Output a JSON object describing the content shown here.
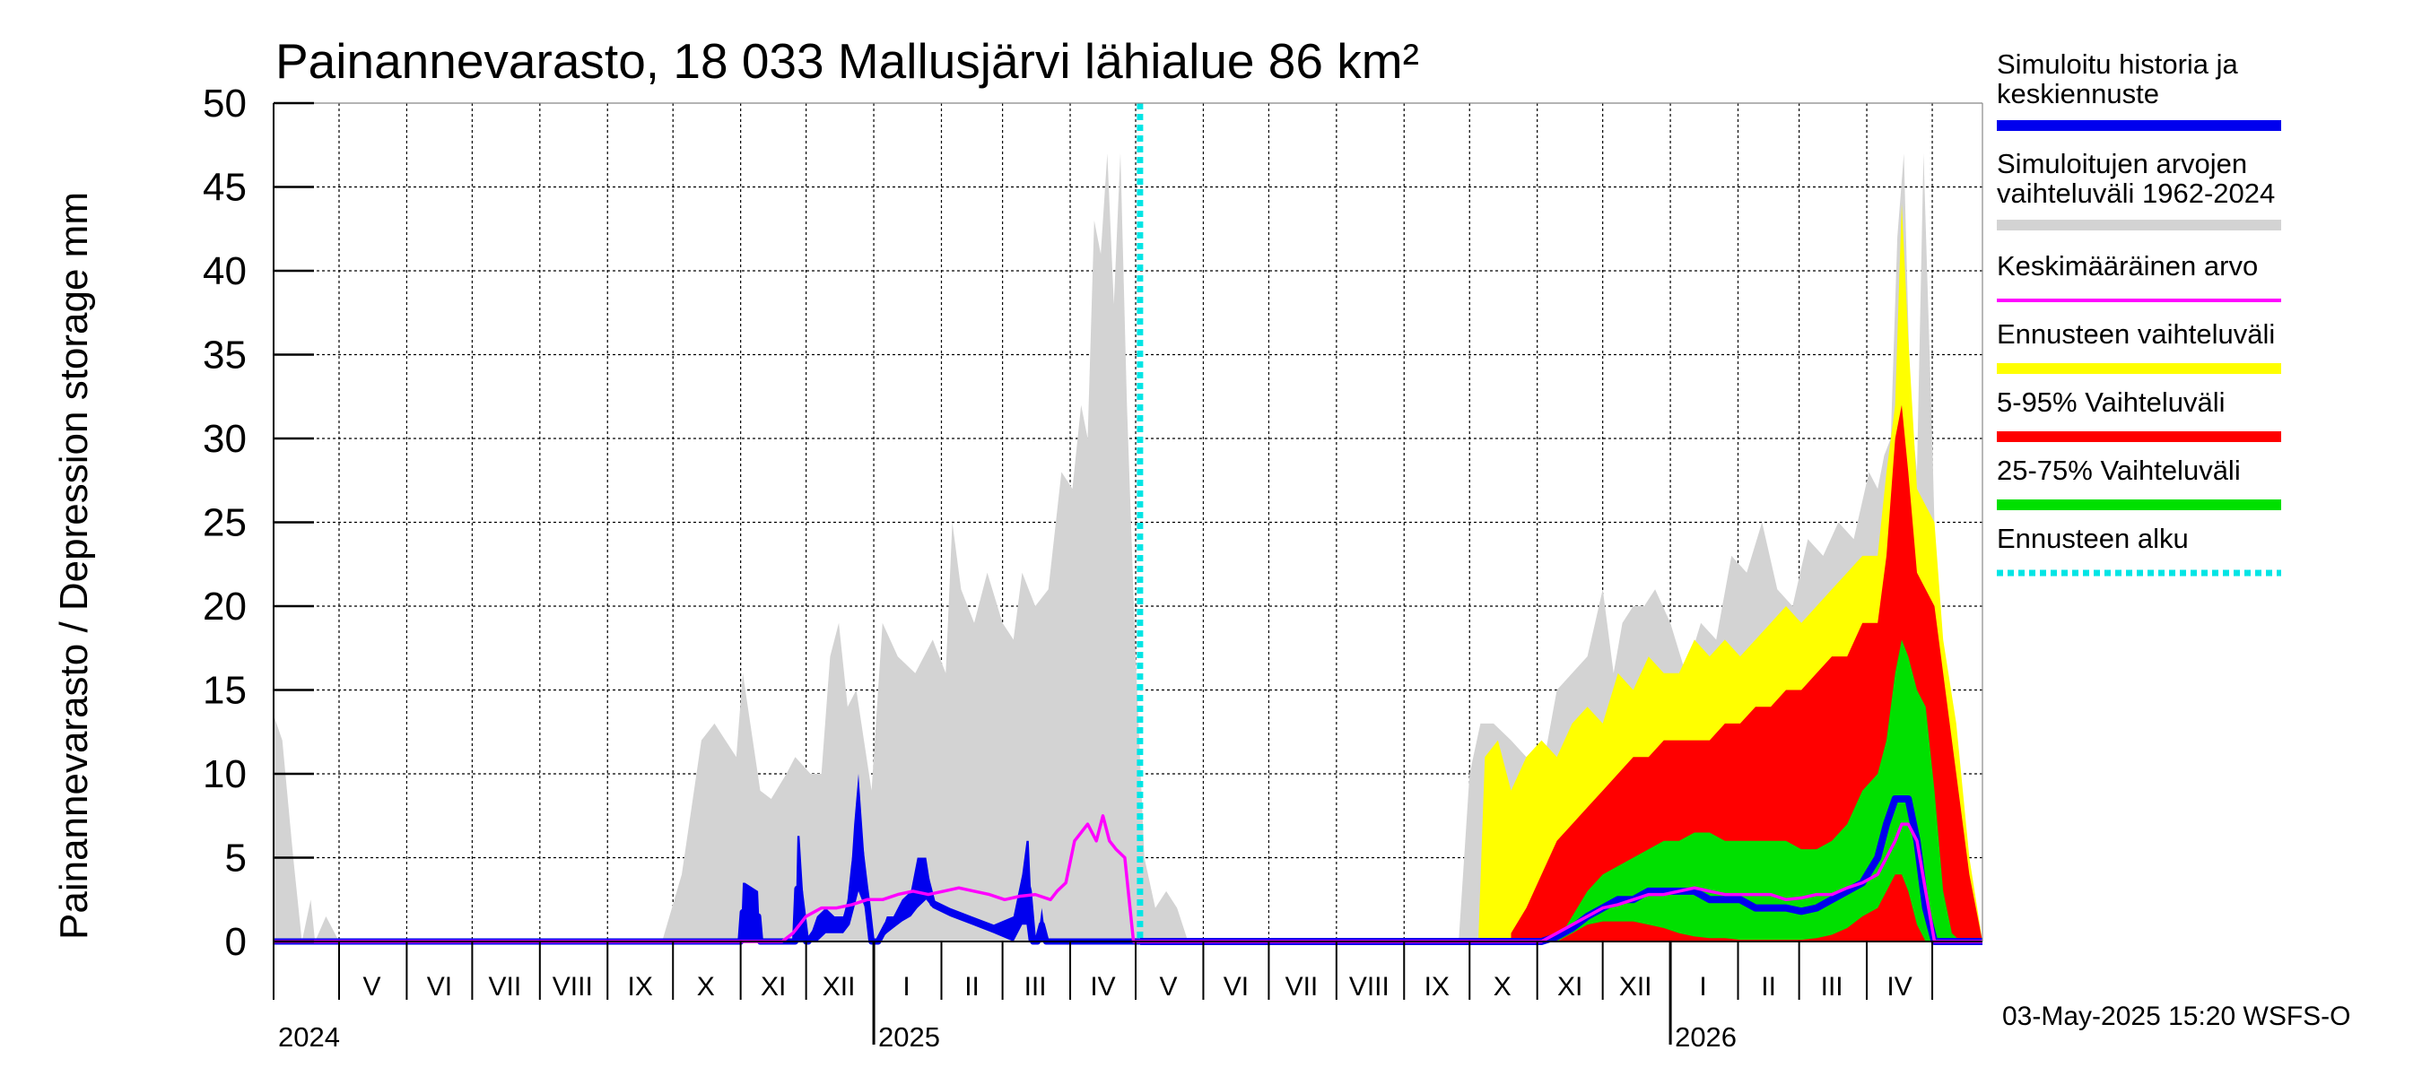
{
  "chart_data": {
    "type": "area",
    "title": "Painannevarasto, 18 033 Mallusjärvi lähialue 86 km²",
    "ylabel": "Painannevarasto / Depression storage    mm",
    "ylim": [
      0,
      50
    ],
    "yticks": [
      0,
      5,
      10,
      15,
      20,
      25,
      30,
      35,
      40,
      45,
      50
    ],
    "xlim": [
      "2024-04-01",
      "2026-05-24"
    ],
    "grid": true,
    "month_labels": [
      {
        "label": "V",
        "date": "2024-05-16"
      },
      {
        "label": "VI",
        "date": "2024-06-16"
      },
      {
        "label": "VII",
        "date": "2024-07-16"
      },
      {
        "label": "VIII",
        "date": "2024-08-16"
      },
      {
        "label": "IX",
        "date": "2024-09-16"
      },
      {
        "label": "X",
        "date": "2024-10-16"
      },
      {
        "label": "XI",
        "date": "2024-11-16"
      },
      {
        "label": "XII",
        "date": "2024-12-16"
      },
      {
        "label": "I",
        "date": "2025-01-16"
      },
      {
        "label": "II",
        "date": "2025-02-15"
      },
      {
        "label": "III",
        "date": "2025-03-16"
      },
      {
        "label": "IV",
        "date": "2025-04-16"
      },
      {
        "label": "V",
        "date": "2025-05-16"
      },
      {
        "label": "VI",
        "date": "2025-06-16"
      },
      {
        "label": "VII",
        "date": "2025-07-16"
      },
      {
        "label": "VIII",
        "date": "2025-08-16"
      },
      {
        "label": "IX",
        "date": "2025-09-16"
      },
      {
        "label": "X",
        "date": "2025-10-16"
      },
      {
        "label": "XI",
        "date": "2025-11-16"
      },
      {
        "label": "XII",
        "date": "2025-12-16"
      },
      {
        "label": "I",
        "date": "2026-01-16"
      },
      {
        "label": "II",
        "date": "2026-02-15"
      },
      {
        "label": "III",
        "date": "2026-03-16"
      },
      {
        "label": "IV",
        "date": "2026-04-16"
      }
    ],
    "year_labels": [
      {
        "label": "2024",
        "date": "2024-04-01"
      },
      {
        "label": "2025",
        "date": "2025-01-01"
      },
      {
        "label": "2026",
        "date": "2026-01-01"
      }
    ],
    "forecast_start": "2025-05-03",
    "series": [
      {
        "name": "Simuloitujen arvojen vaihteluväli 1962-2024",
        "color": "#d3d3d3",
        "kind": "band",
        "dates": [
          "2024-04-01",
          "2024-04-05",
          "2024-04-10",
          "2024-04-14",
          "2024-04-18",
          "2024-04-20",
          "2024-04-25",
          "2024-05-01",
          "2024-09-26",
          "2024-10-05",
          "2024-10-14",
          "2024-10-20",
          "2024-10-30",
          "2024-11-02",
          "2024-11-10",
          "2024-11-15",
          "2024-11-22",
          "2024-11-26",
          "2024-12-03",
          "2024-12-08",
          "2024-12-12",
          "2024-12-16",
          "2024-12-20",
          "2024-12-24",
          "2024-12-31",
          "2025-01-05",
          "2025-01-12",
          "2025-01-20",
          "2025-01-28",
          "2025-02-03",
          "2025-02-06",
          "2025-02-10",
          "2025-02-16",
          "2025-02-22",
          "2025-03-01",
          "2025-03-06",
          "2025-03-10",
          "2025-03-16",
          "2025-03-22",
          "2025-03-28",
          "2025-04-02",
          "2025-04-06",
          "2025-04-09",
          "2025-04-12",
          "2025-04-15",
          "2025-04-18",
          "2025-04-21",
          "2025-04-24",
          "2025-04-27",
          "2025-05-01",
          "2025-05-05",
          "2025-05-10",
          "2025-05-15",
          "2025-05-20",
          "2025-05-25",
          "2025-06-01",
          "2025-09-26",
          "2025-10-01",
          "2025-10-06",
          "2025-10-12",
          "2025-10-20",
          "2025-10-27",
          "2025-11-03",
          "2025-11-10",
          "2025-11-17",
          "2025-11-24",
          "2025-12-01",
          "2025-12-06",
          "2025-12-10",
          "2025-12-15",
          "2025-12-20",
          "2025-12-25",
          "2026-01-01",
          "2026-01-08",
          "2026-01-15",
          "2026-01-22",
          "2026-01-29",
          "2026-02-05",
          "2026-02-12",
          "2026-02-19",
          "2026-02-26",
          "2026-03-05",
          "2026-03-12",
          "2026-03-19",
          "2026-03-26",
          "2026-04-02",
          "2026-04-06",
          "2026-04-09",
          "2026-04-12",
          "2026-04-15",
          "2026-04-18",
          "2026-04-21",
          "2026-04-24",
          "2026-04-27",
          "2026-05-01",
          "2026-05-05",
          "2026-05-10",
          "2026-05-15",
          "2026-05-20",
          "2026-05-24"
        ],
        "upper": [
          13.5,
          12,
          5,
          0,
          2.5,
          0,
          1.5,
          0,
          0,
          4,
          12,
          13,
          11,
          16,
          9,
          8.5,
          10,
          11,
          10,
          10,
          17,
          19,
          14,
          15,
          9,
          19,
          17,
          16,
          18,
          16,
          25,
          21,
          19,
          22,
          19,
          18,
          22,
          20,
          21,
          28,
          27,
          32,
          30,
          43,
          41,
          47,
          38,
          47,
          32,
          17,
          5,
          2,
          3,
          2,
          0,
          0,
          0,
          10,
          13,
          13,
          12,
          11,
          10,
          15,
          16,
          17,
          21,
          16,
          19,
          20,
          20,
          21,
          19,
          16,
          19,
          18,
          23,
          22,
          25,
          21,
          20,
          24,
          23,
          25,
          24,
          28,
          27,
          29,
          30,
          42,
          47,
          32,
          28,
          47,
          30,
          10,
          4,
          0,
          0,
          0
        ]
      },
      {
        "name": "Ennusteen vaihteluväli",
        "color": "#ffff00",
        "kind": "band",
        "dates": [
          "2025-10-05",
          "2025-10-08",
          "2025-10-14",
          "2025-10-20",
          "2025-10-27",
          "2025-11-03",
          "2025-11-10",
          "2025-11-17",
          "2025-11-24",
          "2025-12-01",
          "2025-12-08",
          "2025-12-15",
          "2025-12-22",
          "2025-12-29",
          "2026-01-05",
          "2026-01-12",
          "2026-01-19",
          "2026-01-26",
          "2026-02-02",
          "2026-02-09",
          "2026-02-16",
          "2026-02-23",
          "2026-03-02",
          "2026-03-09",
          "2026-03-16",
          "2026-03-23",
          "2026-03-30",
          "2026-04-06",
          "2026-04-10",
          "2026-04-14",
          "2026-04-17",
          "2026-04-20",
          "2026-04-24",
          "2026-04-28",
          "2026-05-02",
          "2026-05-06",
          "2026-05-12",
          "2026-05-18",
          "2026-05-24"
        ],
        "upper": [
          0,
          11,
          12,
          9,
          11,
          12,
          11,
          13,
          14,
          13,
          16,
          15,
          17,
          16,
          16,
          18,
          17,
          18,
          17,
          18,
          19,
          20,
          19,
          20,
          21,
          22,
          23,
          23,
          28,
          32,
          44,
          36,
          27,
          26,
          25,
          18,
          13,
          5,
          0
        ]
      },
      {
        "name": "5-95% Vaihteluväli",
        "color": "#ff0000",
        "kind": "band",
        "dates": [
          "2025-10-20",
          "2025-10-27",
          "2025-11-03",
          "2025-11-10",
          "2025-11-17",
          "2025-11-24",
          "2025-12-01",
          "2025-12-08",
          "2025-12-15",
          "2025-12-22",
          "2025-12-29",
          "2026-01-05",
          "2026-01-12",
          "2026-01-19",
          "2026-01-26",
          "2026-02-02",
          "2026-02-09",
          "2026-02-16",
          "2026-02-23",
          "2026-03-02",
          "2026-03-09",
          "2026-03-16",
          "2026-03-23",
          "2026-03-30",
          "2026-04-06",
          "2026-04-10",
          "2026-04-14",
          "2026-04-17",
          "2026-04-20",
          "2026-04-24",
          "2026-04-28",
          "2026-05-02",
          "2026-05-06",
          "2026-05-12",
          "2026-05-18",
          "2026-05-24"
        ],
        "upper": [
          0.5,
          2,
          4,
          6,
          7,
          8,
          9,
          10,
          11,
          11,
          12,
          12,
          12,
          12,
          13,
          13,
          14,
          14,
          15,
          15,
          16,
          17,
          17,
          19,
          19,
          23,
          30,
          32,
          28,
          22,
          21,
          20,
          16,
          10,
          4,
          0
        ]
      },
      {
        "name": "25-75% Vaihteluväli",
        "color": "#00e000",
        "kind": "band",
        "dates": [
          "2025-11-10",
          "2025-11-17",
          "2025-11-24",
          "2025-12-01",
          "2025-12-08",
          "2025-12-15",
          "2025-12-22",
          "2025-12-29",
          "2026-01-05",
          "2026-01-12",
          "2026-01-19",
          "2026-01-26",
          "2026-02-02",
          "2026-02-09",
          "2026-02-16",
          "2026-02-23",
          "2026-03-02",
          "2026-03-09",
          "2026-03-16",
          "2026-03-23",
          "2026-03-30",
          "2026-04-06",
          "2026-04-10",
          "2026-04-14",
          "2026-04-17",
          "2026-04-20",
          "2026-04-24",
          "2026-04-28",
          "2026-05-02",
          "2026-05-06",
          "2026-05-10",
          "2026-05-14"
        ],
        "upper": [
          0,
          1.5,
          3,
          4,
          4.5,
          5,
          5.5,
          6,
          6,
          6.5,
          6.5,
          6,
          6,
          6,
          6,
          6,
          5.5,
          5.5,
          6,
          7,
          9,
          10,
          12,
          16,
          18,
          17,
          15,
          14,
          9,
          3,
          0.5,
          0
        ],
        "lower": [
          0,
          0.5,
          1,
          1.2,
          1.2,
          1.2,
          1.0,
          0.8,
          0.5,
          0.3,
          0.2,
          0.2,
          0.1,
          0.1,
          0.1,
          0.1,
          0.1,
          0.2,
          0.4,
          0.8,
          1.5,
          2,
          3,
          4,
          4,
          3,
          1,
          0,
          0,
          0,
          0,
          0
        ]
      },
      {
        "name": "Simuloitu historia ja keskiennuste",
        "color": "#0000ee",
        "kind": "band_line",
        "dates": [
          "2024-04-01",
          "2024-11-01",
          "2024-11-02",
          "2024-11-03",
          "2024-11-09",
          "2024-11-10",
          "2024-11-26",
          "2024-11-27",
          "2024-11-28",
          "2024-12-01",
          "2024-12-02",
          "2024-12-06",
          "2024-12-10",
          "2024-12-14",
          "2024-12-18",
          "2024-12-21",
          "2024-12-23",
          "2024-12-25",
          "2024-12-28",
          "2024-12-29",
          "2024-12-31",
          "2025-01-03",
          "2025-01-07",
          "2025-01-10",
          "2025-01-14",
          "2025-01-18",
          "2025-01-21",
          "2025-01-25",
          "2025-01-28",
          "2025-02-05",
          "2025-02-15",
          "2025-02-25",
          "2025-03-06",
          "2025-03-10",
          "2025-03-12",
          "2025-03-13",
          "2025-03-15",
          "2025-03-17",
          "2025-03-19",
          "2025-03-21",
          "2025-05-03"
        ],
        "upper": [
          0,
          0,
          3.5,
          3.5,
          3,
          0,
          0,
          6.3,
          6.3,
          0,
          0,
          1.5,
          2,
          1.5,
          1.5,
          3,
          7,
          10,
          4.5,
          3.5,
          0,
          0,
          1.5,
          1.5,
          2.5,
          3,
          5,
          5,
          2.5,
          2,
          1.5,
          1,
          1.5,
          4,
          6,
          6,
          0,
          0,
          2,
          0,
          0
        ],
        "lower": [
          0,
          0,
          0,
          0,
          0,
          0,
          0,
          0,
          0,
          0,
          0,
          0,
          0.5,
          0.5,
          0.5,
          1,
          2,
          3,
          2,
          1,
          0,
          0,
          0.5,
          0.8,
          1.2,
          1.5,
          2,
          2.5,
          2,
          1.5,
          1,
          0.5,
          0,
          1,
          1,
          0,
          0,
          0,
          0,
          0,
          0
        ]
      },
      {
        "name": "Simuloitu historia ja keskiennuste",
        "color": "#0000ee",
        "kind": "line",
        "dates": [
          "2025-05-03",
          "2025-11-03",
          "2025-11-10",
          "2025-11-17",
          "2025-11-24",
          "2025-12-01",
          "2025-12-08",
          "2025-12-15",
          "2025-12-22",
          "2025-12-29",
          "2026-01-05",
          "2026-01-12",
          "2026-01-19",
          "2026-01-26",
          "2026-02-02",
          "2026-02-09",
          "2026-02-16",
          "2026-02-23",
          "2026-03-02",
          "2026-03-09",
          "2026-03-16",
          "2026-03-23",
          "2026-03-30",
          "2026-04-06",
          "2026-04-10",
          "2026-04-14",
          "2026-04-17",
          "2026-04-20",
          "2026-04-24",
          "2026-04-28",
          "2026-05-02",
          "2026-05-24"
        ],
        "values": [
          0,
          0,
          0.3,
          0.8,
          1.5,
          2,
          2.5,
          2.5,
          3,
          3,
          3,
          3,
          2.5,
          2.5,
          2.5,
          2,
          2,
          2,
          1.8,
          2,
          2.5,
          3,
          3.5,
          5,
          7,
          8.5,
          8.5,
          8.5,
          6,
          2,
          0,
          0
        ]
      },
      {
        "name": "Keskimääräinen arvo",
        "color": "#ff00ff",
        "kind": "line",
        "dates": [
          "2024-04-01",
          "2024-11-20",
          "2024-11-25",
          "2024-12-01",
          "2024-12-08",
          "2024-12-15",
          "2024-12-22",
          "2024-12-29",
          "2025-01-05",
          "2025-01-12",
          "2025-01-19",
          "2025-01-26",
          "2025-02-02",
          "2025-02-09",
          "2025-02-16",
          "2025-02-23",
          "2025-03-02",
          "2025-03-09",
          "2025-03-16",
          "2025-03-23",
          "2025-03-26",
          "2025-03-30",
          "2025-04-03",
          "2025-04-06",
          "2025-04-09",
          "2025-04-13",
          "2025-04-16",
          "2025-04-19",
          "2025-04-22",
          "2025-04-26",
          "2025-04-30",
          "2025-05-20",
          "2025-11-03",
          "2025-11-10",
          "2025-11-17",
          "2025-11-24",
          "2025-12-01",
          "2025-12-08",
          "2025-12-15",
          "2025-12-22",
          "2025-12-29",
          "2026-01-05",
          "2026-01-12",
          "2026-01-19",
          "2026-01-26",
          "2026-02-02",
          "2026-02-09",
          "2026-02-16",
          "2026-02-23",
          "2026-03-02",
          "2026-03-09",
          "2026-03-16",
          "2026-03-23",
          "2026-03-30",
          "2026-04-06",
          "2026-04-10",
          "2026-04-14",
          "2026-04-17",
          "2026-04-20",
          "2026-04-24",
          "2026-04-28",
          "2026-05-02",
          "2026-05-24"
        ],
        "values": [
          0,
          0,
          0.5,
          1.5,
          2,
          2,
          2.2,
          2.5,
          2.5,
          2.8,
          3,
          2.8,
          3,
          3.2,
          3,
          2.8,
          2.5,
          2.7,
          2.8,
          2.5,
          3,
          3.5,
          6,
          6.5,
          7,
          6,
          7.5,
          6,
          5.5,
          5,
          0,
          0,
          0,
          0.5,
          1,
          1.5,
          2,
          2.2,
          2.5,
          2.8,
          2.8,
          3,
          3.2,
          3,
          2.8,
          2.8,
          2.8,
          2.8,
          2.5,
          2.6,
          2.8,
          2.8,
          3.2,
          3.5,
          4,
          5,
          6,
          7,
          7,
          6,
          3,
          0,
          0
        ]
      }
    ]
  },
  "legend": {
    "items": [
      {
        "label_line1": "Simuloitu historia ja",
        "label_line2": "keskiennuste",
        "color": "#0000ee",
        "style": "solid"
      },
      {
        "label_line1": "Simuloitujen arvojen",
        "label_line2": "vaihteluväli 1962-2024",
        "color": "#d3d3d3",
        "style": "solid"
      },
      {
        "label_line1": "Keskimääräinen arvo",
        "label_line2": "",
        "color": "#ff00ff",
        "style": "thin"
      },
      {
        "label_line1": "Ennusteen vaihteluväli",
        "label_line2": "",
        "color": "#ffff00",
        "style": "solid"
      },
      {
        "label_line1": "5-95% Vaihteluväli",
        "label_line2": "",
        "color": "#ff0000",
        "style": "solid"
      },
      {
        "label_line1": "25-75% Vaihteluväli",
        "label_line2": "",
        "color": "#00e000",
        "style": "solid"
      },
      {
        "label_line1": "Ennusteen alku",
        "label_line2": "",
        "color": "#00e5e5",
        "style": "dotted"
      }
    ]
  },
  "footer": {
    "timestamp": "03-May-2025 15:20 WSFS-O"
  },
  "colors": {
    "forecast_line": "#00e5e5",
    "grid": "#000000",
    "axis": "#000000"
  }
}
